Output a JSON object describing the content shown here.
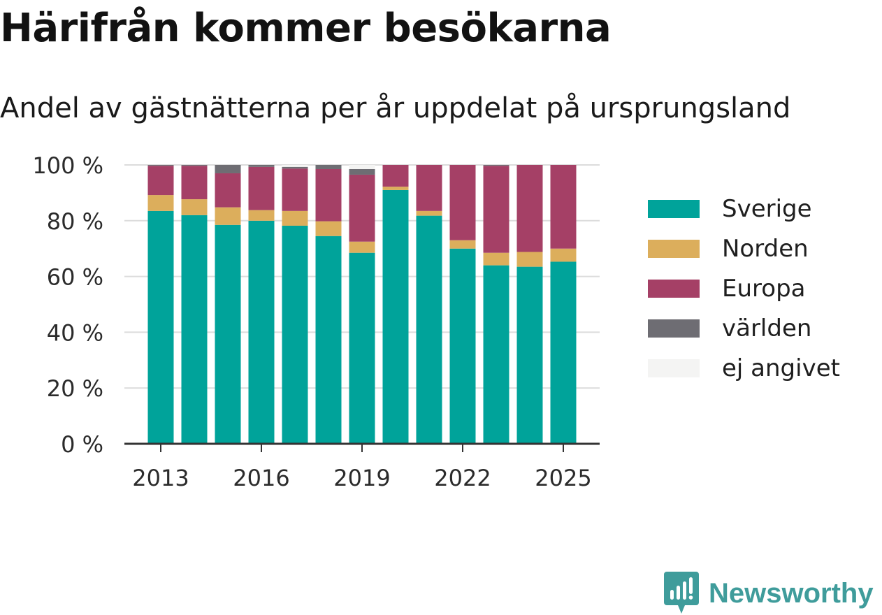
{
  "title": "Härifrån kommer besökarna",
  "subtitle": "Andel av gästnätterna per år uppdelat på ursprungsland",
  "brand": "Newsworthy",
  "brand_color": "#3f9c9b",
  "chart_data": {
    "type": "bar",
    "stacked": true,
    "categories": [
      "2013",
      "2014",
      "2015",
      "2016",
      "2017",
      "2018",
      "2019",
      "2020",
      "2021",
      "2022",
      "2023",
      "2024",
      "2025"
    ],
    "x_tick_labels": [
      "2013",
      "2016",
      "2019",
      "2022",
      "2025"
    ],
    "y_tick_labels": [
      "0 %",
      "20 %",
      "40 %",
      "60 %",
      "80 %",
      "100 %"
    ],
    "ylim": [
      0,
      100
    ],
    "grid": true,
    "legend_position": "right",
    "series": [
      {
        "name": "Sverige",
        "color": "#00a39a",
        "values": [
          83.5,
          82,
          78.5,
          80,
          78.2,
          74.5,
          68.5,
          91,
          81.8,
          70,
          64,
          63.5,
          65.3
        ]
      },
      {
        "name": "Norden",
        "color": "#dcae5c",
        "values": [
          5.7,
          5.7,
          6.3,
          3.8,
          5.3,
          5.3,
          4,
          1.2,
          1.7,
          3,
          4.5,
          5.3,
          4.7
        ]
      },
      {
        "name": "Europa",
        "color": "#a54066",
        "values": [
          10.5,
          12,
          12.2,
          15.5,
          15.2,
          18.7,
          24,
          7.8,
          16.5,
          27,
          31.2,
          31.2,
          30
        ]
      },
      {
        "name": "världen",
        "color": "#6e6d73",
        "values": [
          0.3,
          0.3,
          3,
          0.7,
          0.6,
          1.5,
          2,
          0,
          0,
          0,
          0.3,
          0,
          0
        ]
      },
      {
        "name": "ej angivet",
        "color": "#f4f4f3",
        "values": [
          0,
          0,
          0,
          0,
          0.7,
          0,
          1.5,
          0,
          0,
          0,
          0,
          0,
          0
        ]
      }
    ]
  }
}
